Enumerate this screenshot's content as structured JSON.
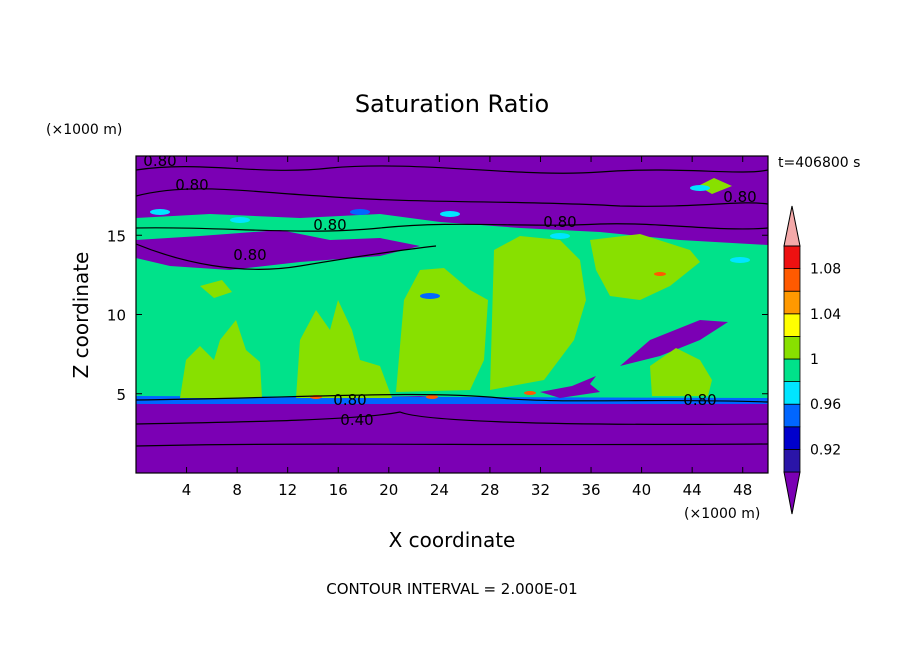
{
  "chart_data": {
    "type": "heatmap",
    "title": "Saturation Ratio",
    "xlabel": "X coordinate",
    "ylabel": "Z coordinate",
    "x_unit": "(×1000 m)",
    "y_unit": "(×1000 m)",
    "time_label": "t=406800 s",
    "footer": "CONTOUR INTERVAL = 2.000E-01",
    "xlim": [
      0,
      50
    ],
    "ylim": [
      0,
      20
    ],
    "x_ticks": [
      "4",
      "8",
      "12",
      "16",
      "20",
      "24",
      "28",
      "32",
      "36",
      "40",
      "44",
      "48"
    ],
    "y_ticks": [
      "5",
      "10",
      "15"
    ],
    "contour_labels": [
      "0.80",
      "0.80",
      "0.80",
      "0.80",
      "0.80",
      "0.80",
      "0.80",
      "0.80",
      "0.40"
    ],
    "colorbar": {
      "levels": [
        "0.92",
        "0.96",
        "1",
        "1.04",
        "1.08"
      ],
      "colors": [
        "#7b00b4",
        "#2a15a8",
        "#0000cc",
        "#0066ff",
        "#00e5ff",
        "#00e28a",
        "#88e000",
        "#ffff00",
        "#ff9900",
        "#ff5a00",
        "#ee1111",
        "#f4a9a9"
      ]
    }
  }
}
